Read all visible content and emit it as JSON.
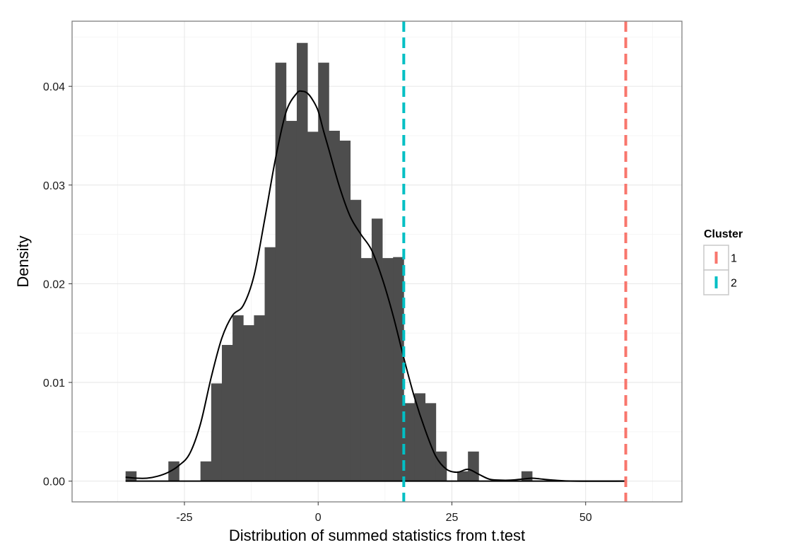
{
  "chart_data": {
    "type": "bar",
    "xlabel": "Distribution of summed statistics from t.test",
    "ylabel": "Density",
    "xlim": [
      -46,
      68
    ],
    "ylim": [
      -0.0021,
      0.0466
    ],
    "x_ticks": [
      -25,
      0,
      25,
      50
    ],
    "x_tick_labels": [
      "-25",
      "0",
      "25",
      "50"
    ],
    "y_ticks": [
      0,
      0.01,
      0.02,
      0.03,
      0.04
    ],
    "y_tick_labels": [
      "0.00",
      "0.01",
      "0.02",
      "0.03",
      "0.04"
    ],
    "grid": true,
    "bin_width": 2,
    "histogram": {
      "bins_start": [
        -36,
        -34,
        -32,
        -30,
        -28,
        -26,
        -24,
        -22,
        -20,
        -18,
        -16,
        -14,
        -12,
        -10,
        -8,
        -6,
        -4,
        -2,
        0,
        2,
        4,
        6,
        8,
        10,
        12,
        14,
        16,
        18,
        20,
        22,
        24,
        26,
        28,
        30,
        32,
        34,
        36,
        38
      ],
      "density": [
        0.001,
        0,
        0,
        0,
        0.002,
        0,
        0,
        0.002,
        0.0099,
        0.0138,
        0.0168,
        0.0158,
        0.0168,
        0.0237,
        0.0424,
        0.0365,
        0.0444,
        0.0354,
        0.0424,
        0.0355,
        0.0345,
        0.0285,
        0.0226,
        0.0266,
        0.0226,
        0.0227,
        0.0079,
        0.0089,
        0.0079,
        0.003,
        0,
        0.001,
        0.003,
        0,
        0,
        0,
        0,
        0.001
      ],
      "color": "#4d4d4d"
    },
    "density_curve": {
      "x": [
        -36,
        -34,
        -32,
        -30,
        -28,
        -26,
        -24,
        -22,
        -20,
        -18,
        -16,
        -14,
        -12,
        -10,
        -8,
        -6,
        -4,
        -3,
        -2,
        -1,
        0,
        1,
        2,
        4,
        6,
        8,
        10,
        12,
        14,
        16,
        18,
        20,
        22,
        24,
        26,
        28,
        30,
        32,
        34,
        36,
        38,
        40,
        42,
        44,
        48,
        57.5
      ],
      "y": [
        0.0004,
        0.0003,
        0.0003,
        0.0005,
        0.0009,
        0.0016,
        0.0028,
        0.0058,
        0.0105,
        0.0145,
        0.0168,
        0.0178,
        0.0208,
        0.0265,
        0.0326,
        0.0374,
        0.0393,
        0.0395,
        0.0393,
        0.0386,
        0.0375,
        0.0355,
        0.0336,
        0.0298,
        0.0268,
        0.025,
        0.0234,
        0.0205,
        0.0168,
        0.0125,
        0.0085,
        0.0052,
        0.0025,
        0.0012,
        0.0009,
        0.0012,
        0.0007,
        0.0002,
        0.0001,
        0.0001,
        0.0002,
        0.0003,
        0.0002,
        0.0001,
        0,
        0
      ],
      "color": "#000000"
    },
    "vlines": [
      {
        "cluster": "1",
        "x": 57.5,
        "color": "#f8766d",
        "style": "dashed"
      },
      {
        "cluster": "2",
        "x": 16,
        "color": "#00bfc4",
        "style": "dashed"
      }
    ],
    "legend": {
      "title": "Cluster",
      "position": "right",
      "entries": [
        {
          "label": "1",
          "color": "#f8766d"
        },
        {
          "label": "2",
          "color": "#00bfc4"
        }
      ]
    }
  }
}
